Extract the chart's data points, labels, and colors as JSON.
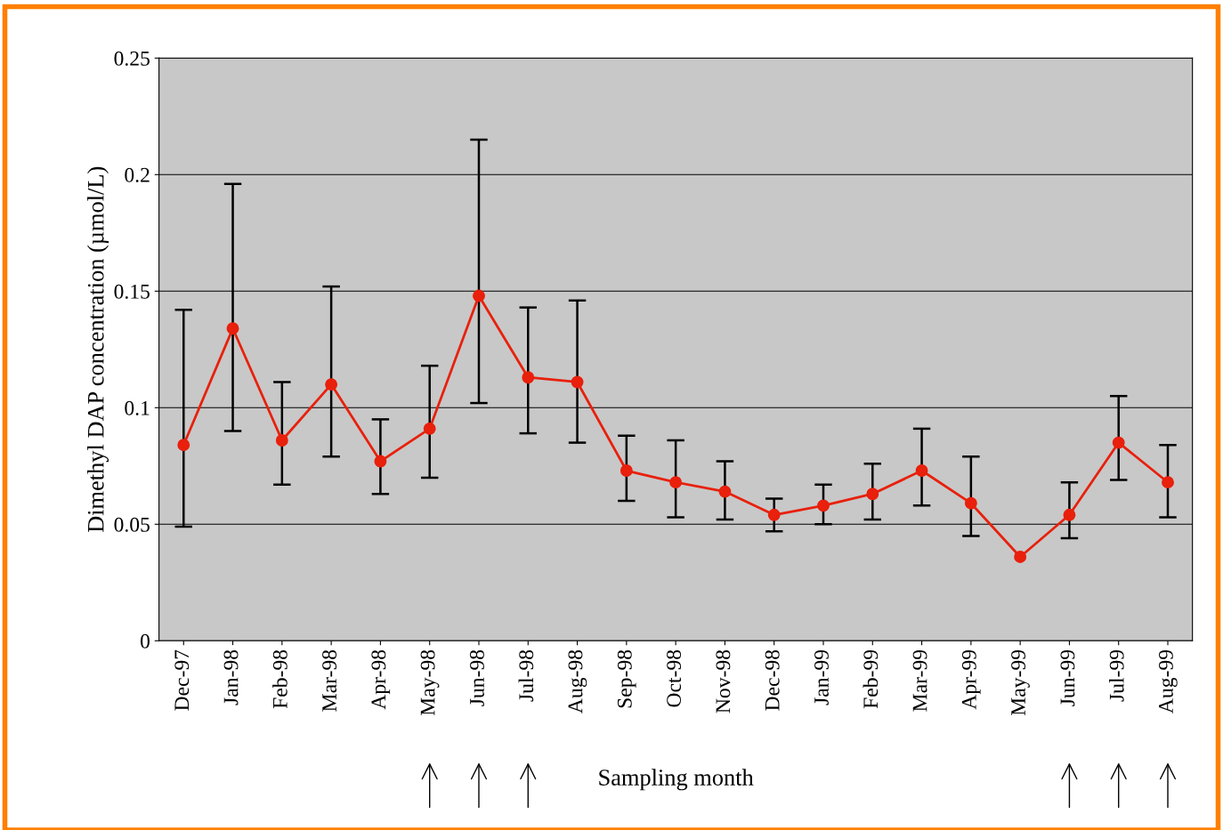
{
  "chart_data": {
    "type": "line",
    "xlabel": "Sampling month",
    "ylabel": "Dimethyl DAP concentration (µmol/L)",
    "categories": [
      "Dec-97",
      "Jan-98",
      "Feb-98",
      "Mar-98",
      "Apr-98",
      "May-98",
      "Jun-98",
      "Jul-98",
      "Aug-98",
      "Sep-98",
      "Oct-98",
      "Nov-98",
      "Dec-98",
      "Jan-99",
      "Feb-99",
      "Mar-99",
      "Apr-99",
      "May-99",
      "Jun-99",
      "Jul-99",
      "Aug-99"
    ],
    "series": [
      {
        "color": "#e8200c",
        "values": [
          0.084,
          0.134,
          0.086,
          0.11,
          0.077,
          0.091,
          0.148,
          0.113,
          0.111,
          0.073,
          0.068,
          0.064,
          0.054,
          0.058,
          0.063,
          0.073,
          0.059,
          0.036,
          0.054,
          0.085,
          0.068
        ],
        "errors": [
          [
            0.049,
            0.142
          ],
          [
            0.09,
            0.196
          ],
          [
            0.067,
            0.111
          ],
          [
            0.079,
            0.152
          ],
          [
            0.063,
            0.095
          ],
          [
            0.07,
            0.118
          ],
          [
            0.102,
            0.215
          ],
          [
            0.089,
            0.143
          ],
          [
            0.085,
            0.146
          ],
          [
            0.06,
            0.088
          ],
          [
            0.053,
            0.086
          ],
          [
            0.052,
            0.077
          ],
          [
            0.047,
            0.061
          ],
          [
            0.05,
            0.067
          ],
          [
            0.052,
            0.076
          ],
          [
            0.058,
            0.091
          ],
          [
            0.045,
            0.079
          ],
          null,
          [
            0.044,
            0.068
          ],
          [
            0.069,
            0.105
          ],
          [
            0.053,
            0.084
          ]
        ]
      }
    ],
    "ylim": [
      0,
      0.25
    ],
    "yticks": [
      {
        "value": 0,
        "label": "0"
      },
      0.05,
      {
        "value": 0.1,
        "label": "0.1"
      },
      0.15,
      {
        "value": 0.2,
        "label": "0.2"
      },
      0.25
    ],
    "grid": "y",
    "legend": false,
    "marker": "circle",
    "line_style": "solid"
  }
}
